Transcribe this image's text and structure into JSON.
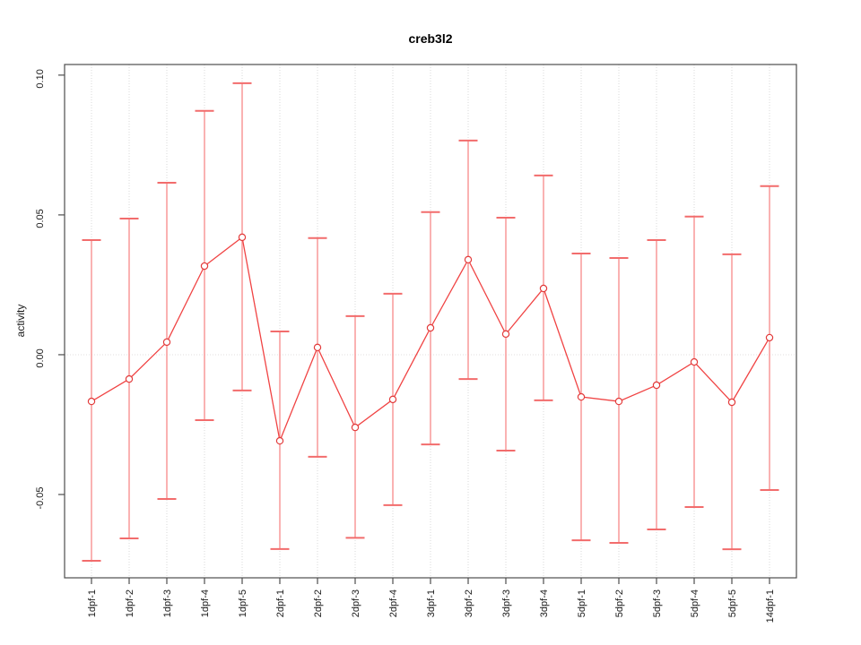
{
  "chart_data": {
    "type": "line",
    "title": "creb3l2",
    "xlabel": "",
    "ylabel": "activity",
    "categories": [
      "1dpf-1",
      "1dpf-2",
      "1dpf-3",
      "1dpf-4",
      "1dpf-5",
      "2dpf-1",
      "2dpf-2",
      "2dpf-3",
      "2dpf-4",
      "3dpf-1",
      "3dpf-2",
      "3dpf-3",
      "3dpf-4",
      "5dpf-1",
      "5dpf-2",
      "5dpf-3",
      "5dpf-4",
      "5dpf-5",
      "14dpf-1"
    ],
    "series": [
      {
        "name": "mean activity with confidence interval",
        "values": [
          -0.0167,
          -0.0087,
          0.0045,
          0.0317,
          0.042,
          -0.0308,
          0.0026,
          -0.026,
          -0.016,
          0.0096,
          0.034,
          0.0074,
          0.0237,
          -0.0151,
          -0.0167,
          -0.0109,
          -0.0026,
          -0.017,
          0.0061
        ],
        "upper": [
          0.041,
          0.0487,
          0.0615,
          0.0872,
          0.0971,
          0.0083,
          0.0417,
          0.0138,
          0.0218,
          0.051,
          0.0766,
          0.049,
          0.0641,
          0.0362,
          0.0346,
          0.041,
          0.0494,
          0.0359,
          0.0603
        ],
        "lower": [
          -0.0737,
          -0.0657,
          -0.0516,
          -0.0234,
          -0.0128,
          -0.0695,
          -0.0365,
          -0.0655,
          -0.0538,
          -0.0321,
          -0.0087,
          -0.0343,
          -0.0163,
          -0.0664,
          -0.0673,
          -0.0625,
          -0.0545,
          -0.0696,
          -0.0484
        ]
      }
    ],
    "yticks": [
      -0.05,
      0.0,
      0.05,
      0.1
    ],
    "ytick_labels": [
      "-0.05",
      "0.00",
      "0.05",
      "0.10"
    ],
    "ylim": [
      -0.0798,
      0.1038
    ],
    "grid": {
      "vertical_dotted_at_categories": true,
      "horizontal_dotted_at_zero": true
    },
    "legend": "none",
    "colors": {
      "series_line": "#f04343",
      "error_bar": "#f89f9f",
      "error_cap": "#f26c6c",
      "point_stroke": "#e23a3a",
      "point_fill": "#ffffff",
      "grid": "#d8d8d8",
      "zero_line": "#e2dcdc",
      "box": "#4d4d4d",
      "text": "#1a1a1a"
    }
  }
}
